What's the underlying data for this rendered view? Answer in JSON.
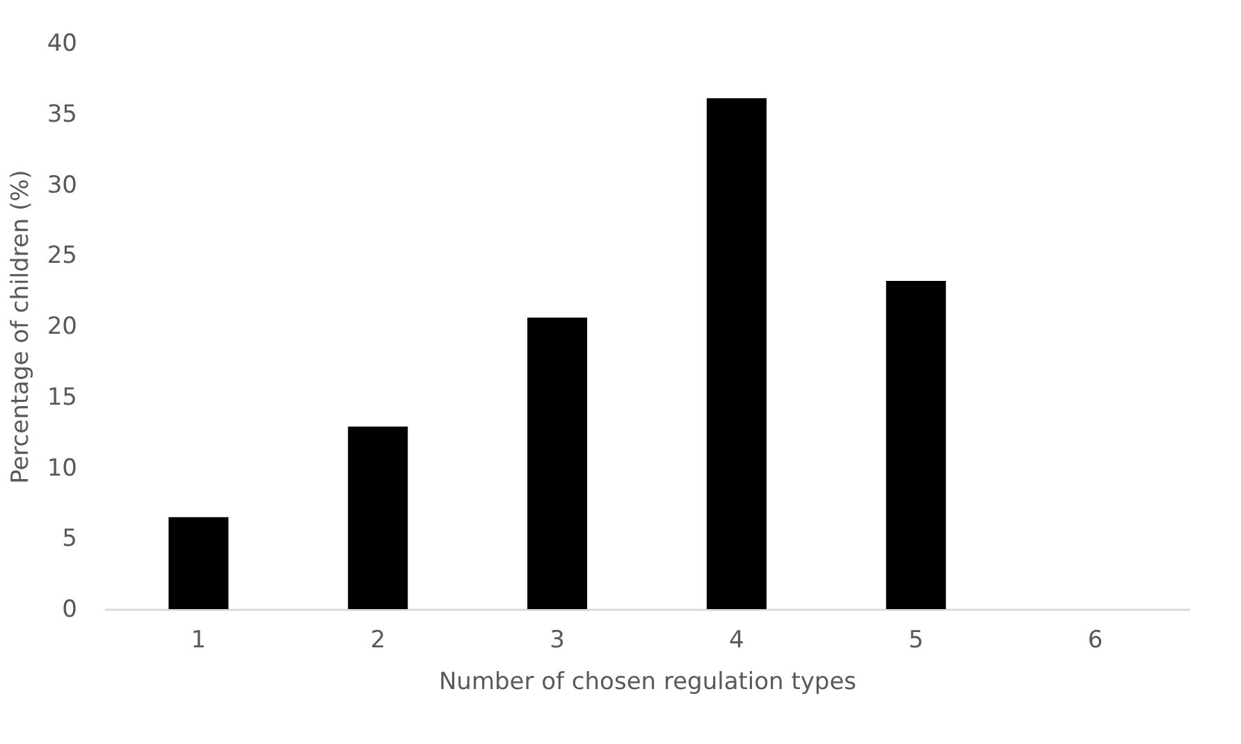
{
  "chart_data": {
    "type": "bar",
    "xlabel": "Number of chosen regulation types",
    "ylabel": "Percentage of children (%)",
    "categories": [
      "1",
      "2",
      "3",
      "4",
      "5",
      "6"
    ],
    "values": [
      6.5,
      12.9,
      20.6,
      36.1,
      23.2,
      0
    ],
    "color": "#000000",
    "ylim": [
      0,
      40
    ],
    "yticks": [
      0,
      5,
      10,
      15,
      20,
      25,
      30,
      35,
      40
    ],
    "grid": false
  }
}
